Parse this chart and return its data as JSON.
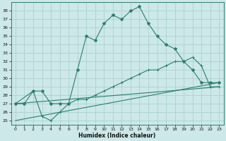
{
  "xlabel": "Humidex (Indice chaleur)",
  "bg_color": "#cce8e8",
  "grid_color": "#a8cccc",
  "line_color": "#2e7d6e",
  "xlim": [
    -0.5,
    23.5
  ],
  "ylim": [
    24.5,
    39.0
  ],
  "xticks": [
    0,
    1,
    2,
    3,
    4,
    5,
    6,
    7,
    8,
    9,
    10,
    11,
    12,
    13,
    14,
    15,
    16,
    17,
    18,
    19,
    20,
    21,
    22,
    23
  ],
  "yticks": [
    25,
    26,
    27,
    28,
    29,
    30,
    31,
    32,
    33,
    34,
    35,
    36,
    37,
    38
  ],
  "line1_x": [
    0,
    1,
    2,
    3,
    4,
    5,
    6,
    7,
    8,
    9,
    10,
    11,
    12,
    13,
    14,
    15,
    16,
    17,
    18,
    19,
    20,
    21,
    22,
    23
  ],
  "line1_y": [
    27,
    27,
    28.5,
    28.5,
    27,
    27,
    27,
    31,
    35,
    34.5,
    36.5,
    37.5,
    37,
    38,
    38.5,
    36.5,
    35,
    34,
    33.5,
    32,
    31,
    29.5,
    29.5,
    29.5
  ],
  "line2_x": [
    0,
    2,
    3,
    4,
    5,
    6,
    7,
    8,
    9,
    10,
    11,
    12,
    13,
    14,
    15,
    16,
    17,
    18,
    19,
    20,
    21,
    22,
    23
  ],
  "line2_y": [
    27,
    28.5,
    25.5,
    25,
    26,
    27,
    27.5,
    27.5,
    28,
    28.5,
    29,
    29.5,
    30,
    30.5,
    31,
    31,
    31.5,
    32,
    32,
    32.5,
    31.5,
    29,
    29
  ],
  "line3_x": [
    0,
    23
  ],
  "line3_y": [
    27,
    29.0
  ],
  "line4_x": [
    0,
    23
  ],
  "line4_y": [
    25,
    29.5
  ]
}
